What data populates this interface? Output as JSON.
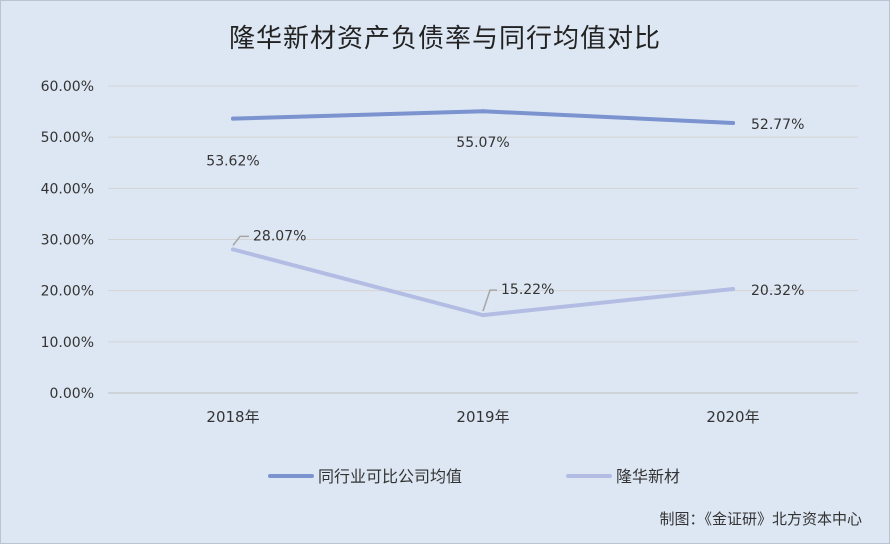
{
  "chart_data": {
    "type": "line",
    "title": "隆华新材资产负债率与同行均值对比",
    "categories": [
      "2018年",
      "2019年",
      "2020年"
    ],
    "ylim": [
      0,
      60
    ],
    "y_ticks": [
      "0.00%",
      "10.00%",
      "20.00%",
      "30.00%",
      "40.00%",
      "50.00%",
      "60.00%"
    ],
    "grid": true,
    "legend_position": "bottom",
    "series": [
      {
        "name": "同行业可比公司均值",
        "values": [
          53.62,
          55.07,
          52.77
        ],
        "labels": [
          "53.62%",
          "55.07%",
          "52.77%"
        ],
        "color": "#7b93cf"
      },
      {
        "name": "隆华新材",
        "values": [
          28.07,
          15.22,
          20.32
        ],
        "labels": [
          "28.07%",
          "15.22%",
          "20.32%"
        ],
        "color": "#b3bde3"
      }
    ]
  },
  "credit": "制图：《金证研》北方资本中心"
}
